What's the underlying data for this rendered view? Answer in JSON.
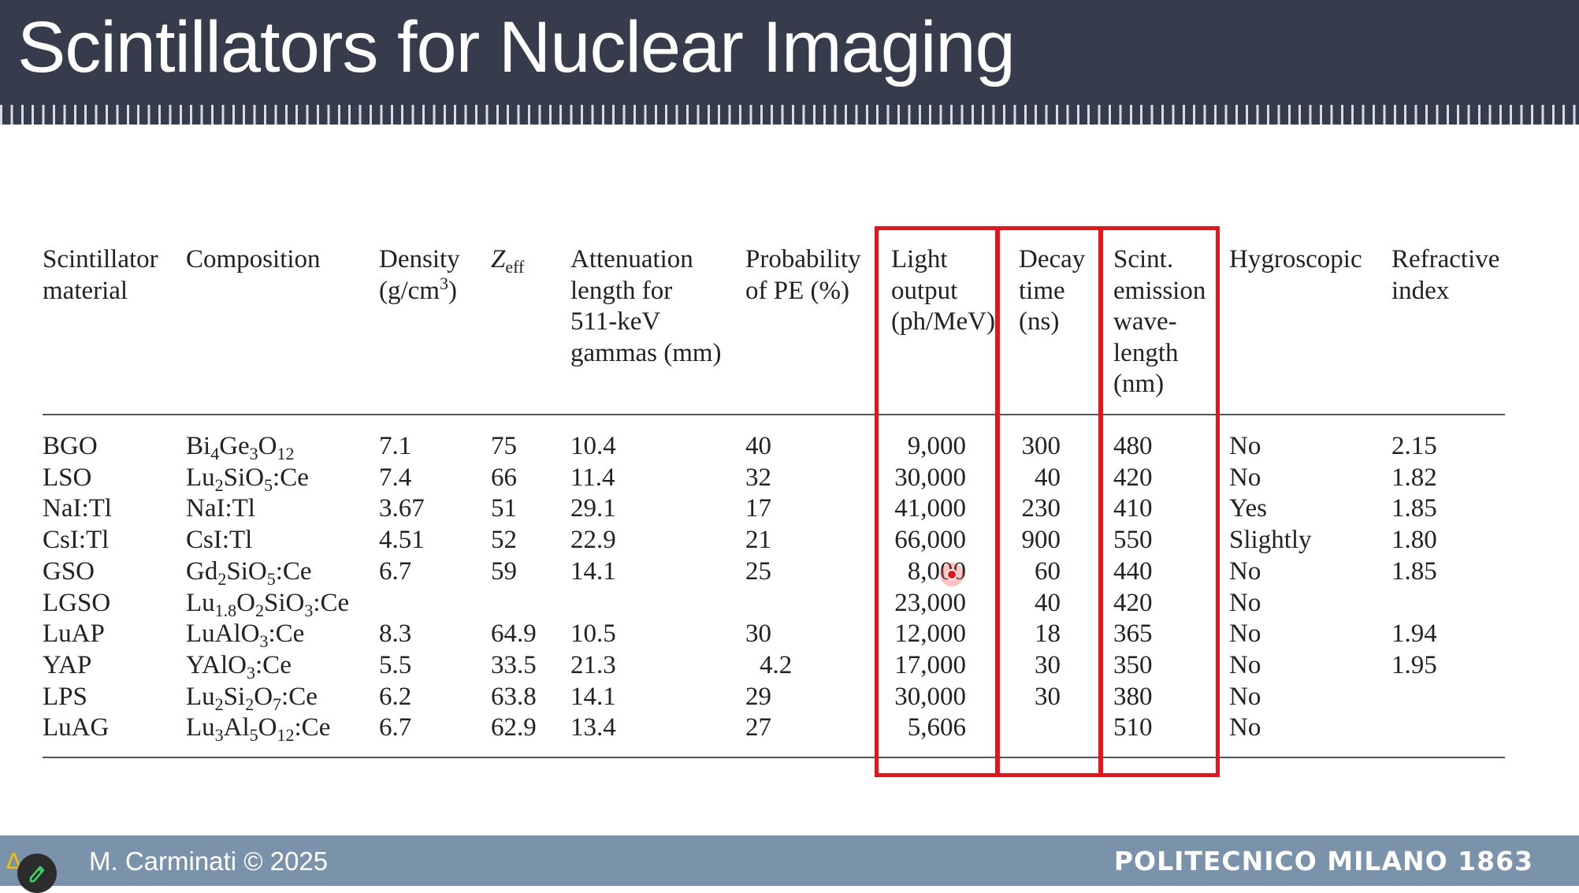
{
  "slide": {
    "title": "Scintillators for Nuclear Imaging",
    "author": "M. Carminati © 2025",
    "brand": "POLITECNICO MILANO 1863",
    "accent_color": "#e8141b",
    "header_color": "#363c4c",
    "footer_color": "#7a93ab"
  },
  "table": {
    "headers": {
      "material": [
        "Scintillator",
        "material"
      ],
      "composition": [
        "Composition"
      ],
      "density": [
        "Density",
        "(g/cm",
        "3",
        ")"
      ],
      "zeff": [
        "Z",
        "eff"
      ],
      "attenuation": [
        "Attenuation",
        "length for",
        "511-keV",
        "gammas (mm)"
      ],
      "pe": [
        "Probability",
        "of PE (%)"
      ],
      "light": [
        "Light",
        "output",
        "(ph/MeV)"
      ],
      "decay": [
        "Decay",
        "time",
        "(ns)"
      ],
      "emission": [
        "Scint.",
        "emission",
        "wave-",
        "length",
        "(nm)"
      ],
      "hygro": [
        "Hygroscopic"
      ],
      "refr": [
        "Refractive",
        "index"
      ]
    },
    "rows": [
      {
        "material": "BGO",
        "comp": [
          [
            "Bi",
            ""
          ],
          [
            "4",
            "sub"
          ],
          [
            "Ge",
            ""
          ],
          [
            "3",
            "sub"
          ],
          [
            "O",
            ""
          ],
          [
            "12",
            "sub"
          ]
        ],
        "density": "7.1",
        "zeff": "75",
        "atten": "10.4",
        "pe": "40",
        "light": "9,000",
        "decay": "300",
        "emission": "480",
        "hygro": "No",
        "refr": "2.15"
      },
      {
        "material": "LSO",
        "comp": [
          [
            "Lu",
            ""
          ],
          [
            "2",
            "sub"
          ],
          [
            "SiO",
            ""
          ],
          [
            "5",
            "sub"
          ],
          [
            ":Ce",
            ""
          ]
        ],
        "density": "7.4",
        "zeff": "66",
        "atten": "11.4",
        "pe": "32",
        "light": "30,000",
        "decay": "40",
        "emission": "420",
        "hygro": "No",
        "refr": "1.82"
      },
      {
        "material": "NaI:Tl",
        "comp": [
          [
            "NaI:Tl",
            ""
          ]
        ],
        "density": "3.67",
        "zeff": "51",
        "atten": "29.1",
        "pe": "17",
        "light": "41,000",
        "decay": "230",
        "emission": "410",
        "hygro": "Yes",
        "refr": "1.85"
      },
      {
        "material": "CsI:Tl",
        "comp": [
          [
            "CsI:Tl",
            ""
          ]
        ],
        "density": "4.51",
        "zeff": "52",
        "atten": "22.9",
        "pe": "21",
        "light": "66,000",
        "decay": "900",
        "emission": "550",
        "hygro": "Slightly",
        "refr": "1.80"
      },
      {
        "material": "GSO",
        "comp": [
          [
            "Gd",
            ""
          ],
          [
            "2",
            "sub"
          ],
          [
            "SiO",
            ""
          ],
          [
            "5",
            "sub"
          ],
          [
            ":Ce",
            ""
          ]
        ],
        "density": "6.7",
        "zeff": "59",
        "atten": "14.1",
        "pe": "25",
        "light": "8,000",
        "decay": "60",
        "emission": "440",
        "hygro": "No",
        "refr": "1.85"
      },
      {
        "material": "LGSO",
        "comp": [
          [
            "Lu",
            ""
          ],
          [
            "1.8",
            "sub"
          ],
          [
            "O",
            ""
          ],
          [
            "2",
            "sub"
          ],
          [
            "SiO",
            ""
          ],
          [
            "3",
            "sub"
          ],
          [
            ":Ce",
            ""
          ]
        ],
        "density": "",
        "zeff": "",
        "atten": "",
        "pe": "",
        "light": "23,000",
        "decay": "40",
        "emission": "420",
        "hygro": "No",
        "refr": ""
      },
      {
        "material": "LuAP",
        "comp": [
          [
            "LuAlO",
            ""
          ],
          [
            "3",
            "sub"
          ],
          [
            ":Ce",
            ""
          ]
        ],
        "density": "8.3",
        "zeff": "64.9",
        "atten": "10.5",
        "pe": "30",
        "light": "12,000",
        "decay": "18",
        "emission": "365",
        "hygro": "No",
        "refr": "1.94"
      },
      {
        "material": "YAP",
        "comp": [
          [
            "YAlO",
            ""
          ],
          [
            "3",
            "sub"
          ],
          [
            ":Ce",
            ""
          ]
        ],
        "density": "5.5",
        "zeff": "33.5",
        "atten": "21.3",
        "pe": "4.2",
        "light": "17,000",
        "decay": "30",
        "emission": "350",
        "hygro": "No",
        "refr": "1.95"
      },
      {
        "material": "LPS",
        "comp": [
          [
            "Lu",
            ""
          ],
          [
            "2",
            "sub"
          ],
          [
            "Si",
            ""
          ],
          [
            "2",
            "sub"
          ],
          [
            "O",
            ""
          ],
          [
            "7",
            "sub"
          ],
          [
            ":Ce",
            ""
          ]
        ],
        "density": "6.2",
        "zeff": "63.8",
        "atten": "14.1",
        "pe": "29",
        "light": "30,000",
        "decay": "30",
        "emission": "380",
        "hygro": "No",
        "refr": ""
      },
      {
        "material": "LuAG",
        "comp": [
          [
            "Lu",
            ""
          ],
          [
            "3",
            "sub"
          ],
          [
            "Al",
            ""
          ],
          [
            "5",
            "sub"
          ],
          [
            "O",
            ""
          ],
          [
            "12",
            "sub"
          ],
          [
            ":Ce",
            ""
          ]
        ],
        "density": "6.7",
        "zeff": "62.9",
        "atten": "13.4",
        "pe": "27",
        "light": "5,606",
        "decay": "",
        "emission": "510",
        "hygro": "No",
        "refr": ""
      }
    ]
  }
}
